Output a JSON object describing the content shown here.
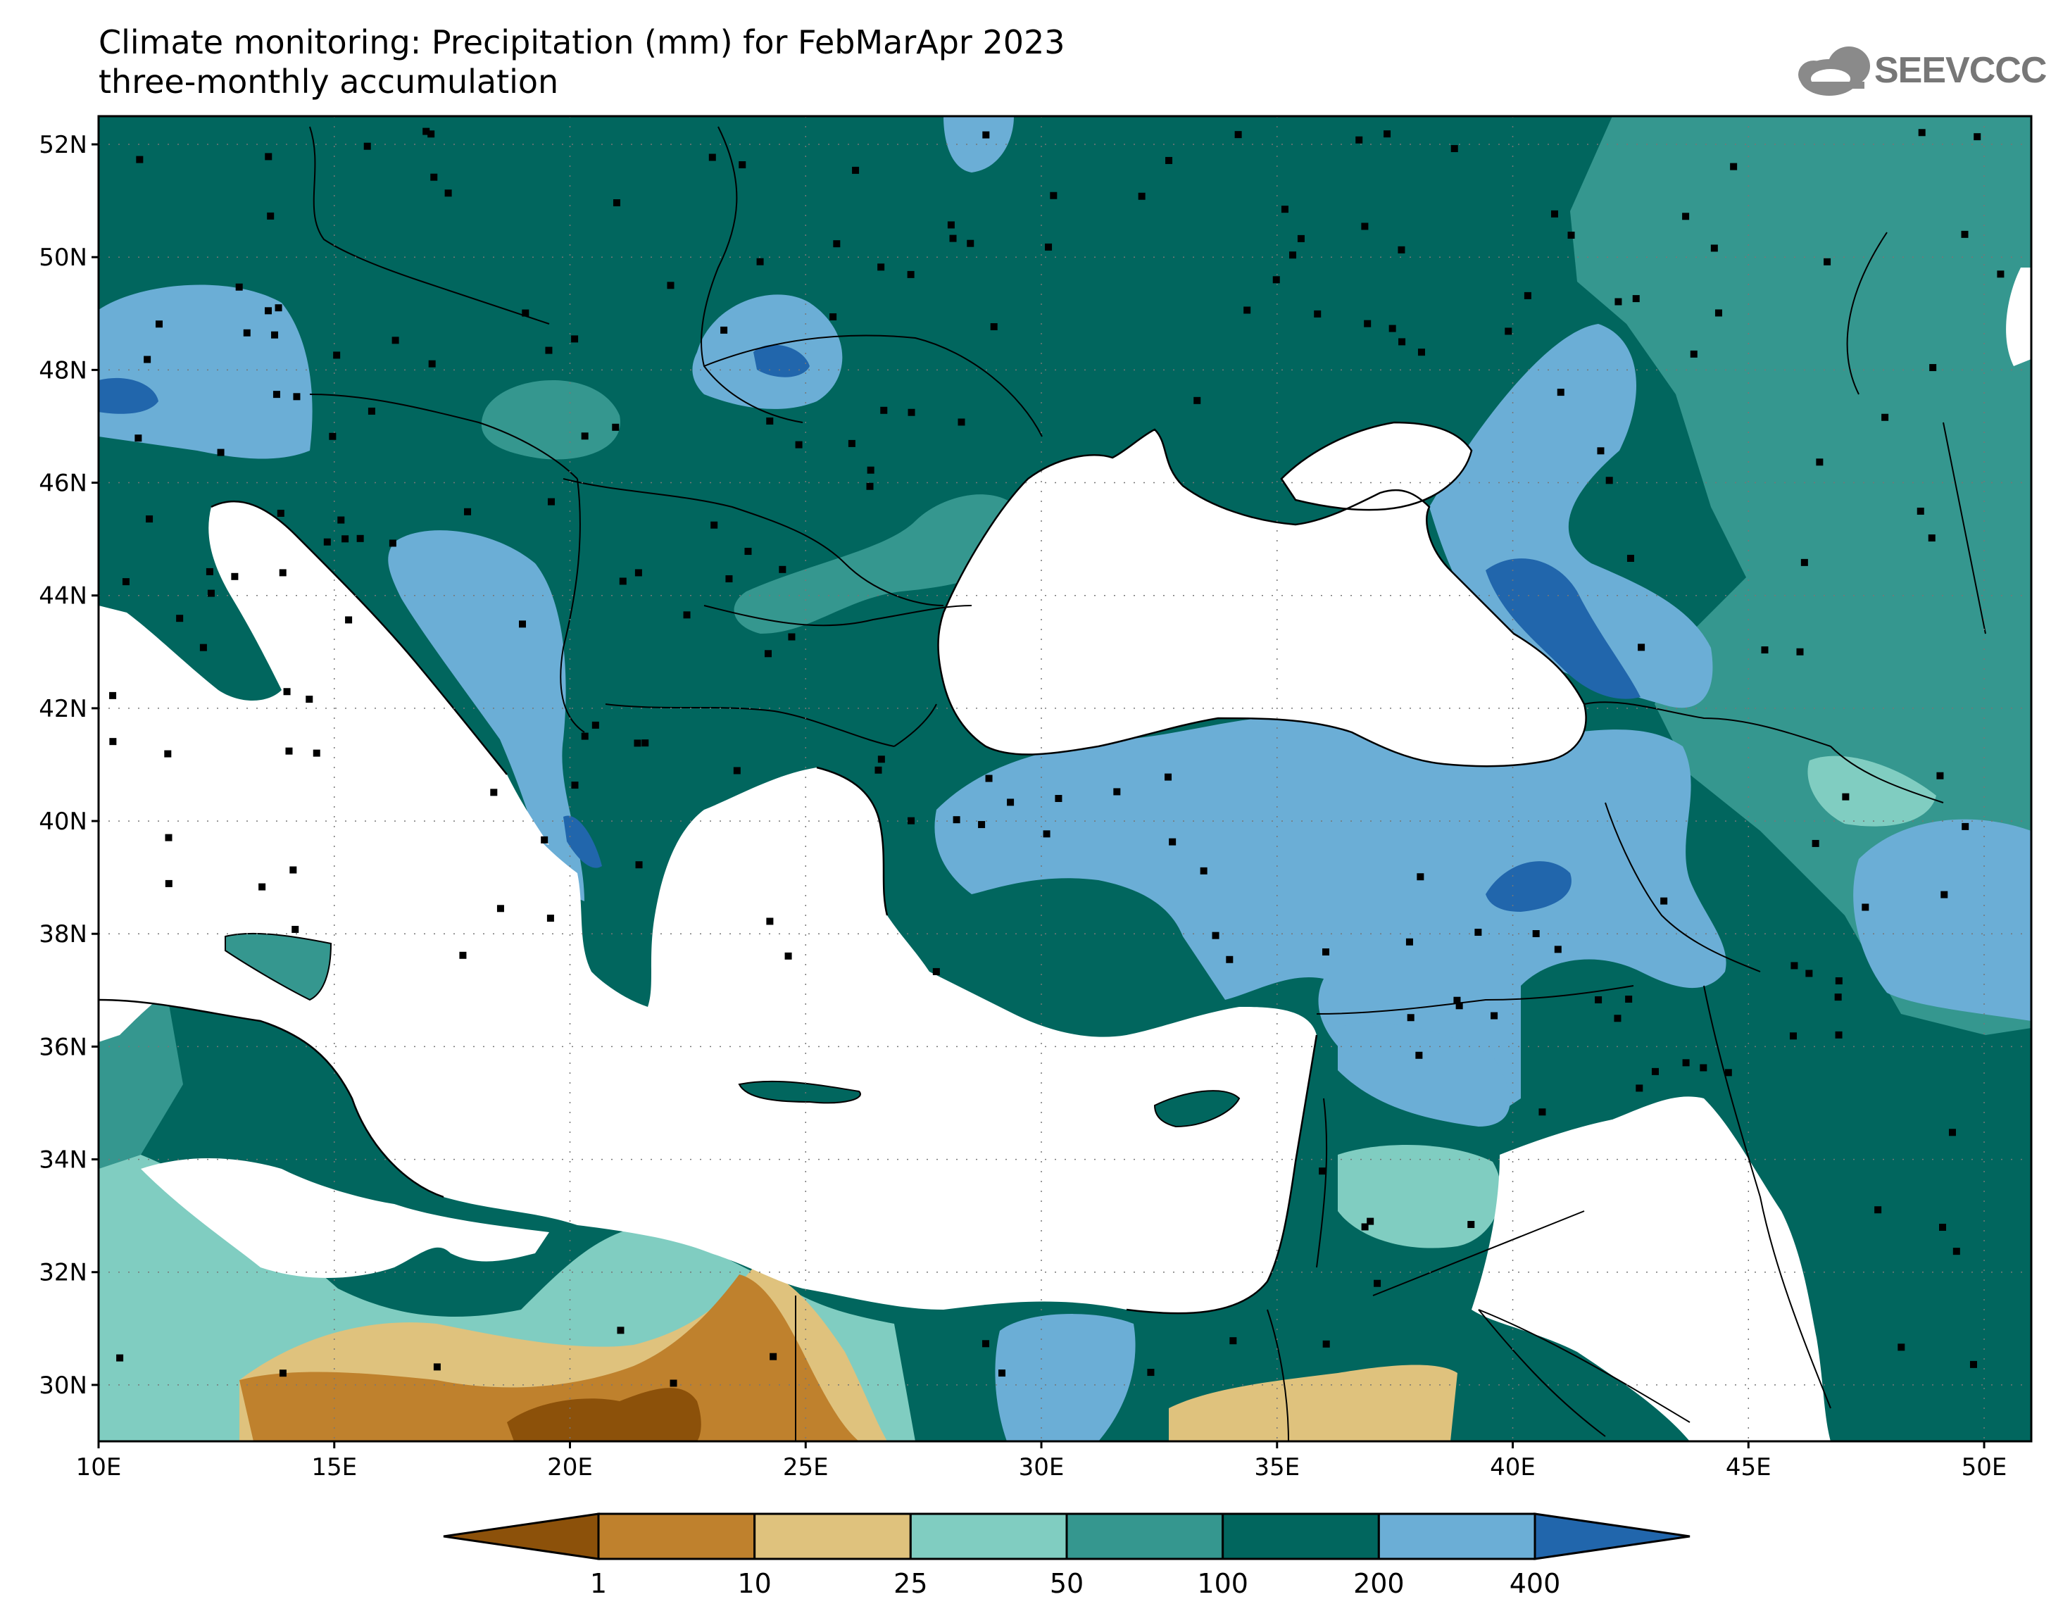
{
  "title": {
    "line1": "Climate monitoring: Precipitation (mm) for FebMarApr 2023",
    "line2": "three-monthly accumulation"
  },
  "logo": {
    "text": "SEEVCCC",
    "icon": "cloud-icon"
  },
  "map": {
    "lat_labels": [
      "52N",
      "50N",
      "48N",
      "46N",
      "44N",
      "42N",
      "40N",
      "38N",
      "36N",
      "34N",
      "32N",
      "30N"
    ],
    "lon_labels": [
      "10E",
      "15E",
      "20E",
      "25E",
      "30E",
      "35E",
      "40E",
      "45E",
      "50E"
    ],
    "lat_range": [
      29,
      52.5
    ],
    "lon_range": [
      10,
      51
    ],
    "grid": "dotted"
  },
  "legend": {
    "levels": [
      "1",
      "10",
      "25",
      "50",
      "100",
      "200",
      "400"
    ],
    "colors": [
      "#8c510a",
      "#bf812d",
      "#dfc27d",
      "#80cdc1",
      "#35978f",
      "#01665e",
      "#6baed6",
      "#2166ac"
    ],
    "land_default": "#01665e",
    "sea": "#ffffff"
  }
}
